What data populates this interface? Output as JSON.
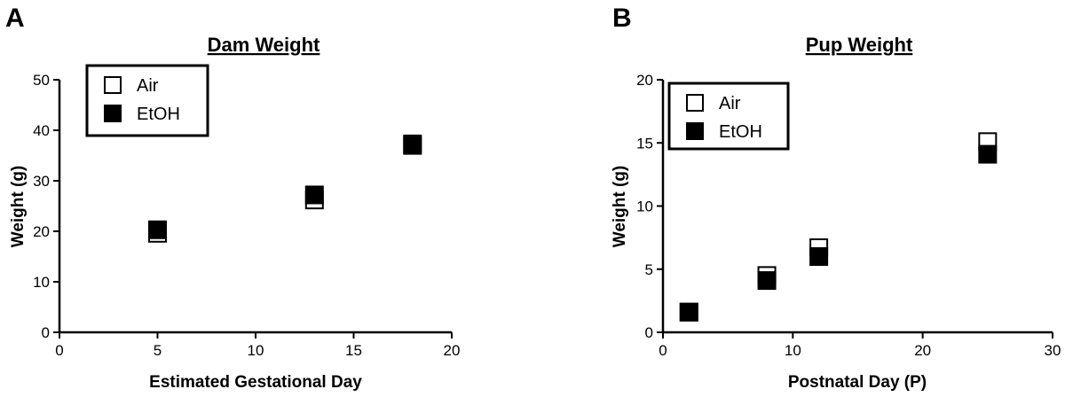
{
  "panels": [
    {
      "panel_label": "A",
      "chart_data": {
        "type": "scatter",
        "title": "Dam Weight",
        "xlabel": "Estimated Gestational Day",
        "ylabel": "Weight (g)",
        "xlim": [
          0,
          20
        ],
        "ylim": [
          0,
          50
        ],
        "xticks": [
          0,
          5,
          10,
          15,
          20
        ],
        "yticks": [
          0,
          10,
          20,
          30,
          40,
          50
        ],
        "grid": false,
        "legend_position": "top-left",
        "series": [
          {
            "name": "Air",
            "marker": "open-square",
            "color": "#000000",
            "x": [
              5,
              13,
              18
            ],
            "y": [
              19.6,
              26.2,
              37.3
            ]
          },
          {
            "name": "EtOH",
            "marker": "filled-square",
            "color": "#000000",
            "x": [
              5,
              13,
              18
            ],
            "y": [
              20.3,
              27.2,
              37.0
            ]
          }
        ]
      }
    },
    {
      "panel_label": "B",
      "chart_data": {
        "type": "scatter",
        "title": "Pup Weight",
        "xlabel": "Postnatal Day (P)",
        "ylabel": "Weight (g)",
        "xlim": [
          0,
          30
        ],
        "ylim": [
          0,
          20
        ],
        "xticks": [
          0,
          10,
          20,
          30
        ],
        "yticks": [
          0,
          5,
          10,
          15,
          20
        ],
        "grid": false,
        "legend_position": "top-left",
        "series": [
          {
            "name": "Air",
            "marker": "open-square",
            "color": "#000000",
            "x": [
              2,
              8,
              12,
              25
            ],
            "y": [
              1.6,
              4.5,
              6.7,
              15.1
            ]
          },
          {
            "name": "EtOH",
            "marker": "filled-square",
            "color": "#000000",
            "x": [
              2,
              8,
              12,
              25
            ],
            "y": [
              1.6,
              4.1,
              6.0,
              14.1
            ]
          }
        ]
      }
    }
  ]
}
